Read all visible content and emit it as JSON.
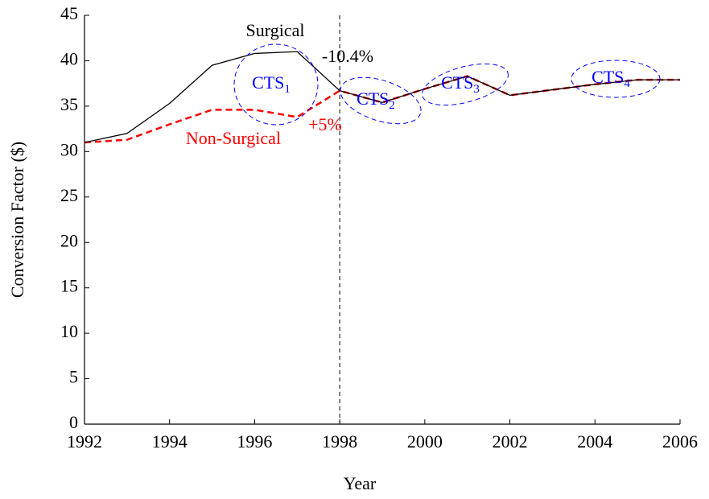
{
  "chart_data": {
    "type": "line",
    "xlabel": "Year",
    "ylabel": "Conversion Factor ($)",
    "x": [
      1992,
      1993,
      1994,
      1995,
      1996,
      1997,
      1998,
      1999,
      2000,
      2001,
      2002,
      2003,
      2004,
      2005,
      2006
    ],
    "series": [
      {
        "name": "Surgical",
        "color": "#000000",
        "dash": false,
        "values": [
          31,
          32,
          35.3,
          39.5,
          40.8,
          41,
          36.7,
          35.4,
          36.9,
          38.3,
          36.2,
          36.8,
          37.4,
          37.9,
          37.9
        ]
      },
      {
        "name": "Non-Surgical",
        "color": "#ff0000",
        "dash": true,
        "values": [
          31,
          31.3,
          33,
          34.6,
          34.6,
          33.8,
          36.7,
          35.4,
          36.9,
          38.3,
          36.2,
          36.8,
          37.4,
          37.9,
          37.9
        ]
      }
    ],
    "xlim": [
      1992,
      2006
    ],
    "xticks": [
      1992,
      1994,
      1996,
      1998,
      2000,
      2002,
      2004,
      2006
    ],
    "ylim": [
      0,
      45
    ],
    "yticks": [
      0,
      5,
      10,
      15,
      20,
      25,
      30,
      35,
      40,
      45
    ],
    "vline_x": 1998,
    "annotations": [
      {
        "text": "-10.4%",
        "color": "#000000"
      },
      {
        "text": "+5%",
        "color": "#ff0000"
      }
    ],
    "periods": [
      {
        "text": "CTS",
        "sub": "1"
      },
      {
        "text": "CTS",
        "sub": "2"
      },
      {
        "text": "CTS",
        "sub": "3"
      },
      {
        "text": "CTS",
        "sub": "4"
      }
    ],
    "period_color": "#0000ff",
    "grid": false
  }
}
